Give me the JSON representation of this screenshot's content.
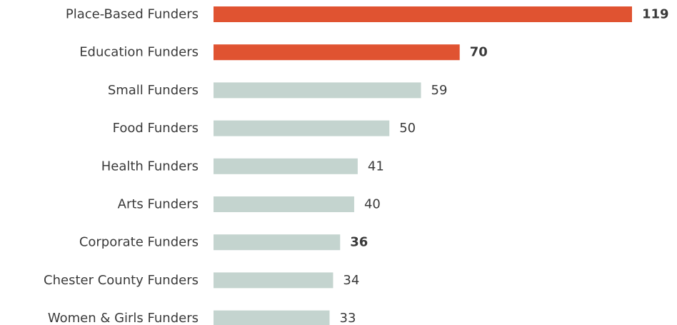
{
  "chart_data": {
    "type": "bar",
    "orientation": "horizontal",
    "title": "",
    "xlabel": "",
    "ylabel": "",
    "grid": false,
    "xlim": [
      0,
      119
    ],
    "categories": [
      "Place-Based Funders",
      "Education Funders",
      "Small Funders",
      "Food Funders",
      "Health Funders",
      "Arts Funders",
      "Corporate Funders",
      "Chester County Funders",
      "Women & Girls Funders"
    ],
    "values": [
      119,
      70,
      59,
      50,
      41,
      40,
      36,
      34,
      33
    ],
    "value_labels": [
      "119",
      "70",
      "59",
      "50",
      "41",
      "40",
      "36",
      "34",
      "33"
    ],
    "highlighted": [
      true,
      true,
      false,
      false,
      false,
      false,
      false,
      false,
      false
    ],
    "bold_labels": [
      true,
      true,
      false,
      false,
      false,
      false,
      true,
      false,
      false
    ],
    "colors": {
      "highlight": "#e05331",
      "default": "#c4d4cf",
      "text": "#3a3a3a"
    }
  }
}
